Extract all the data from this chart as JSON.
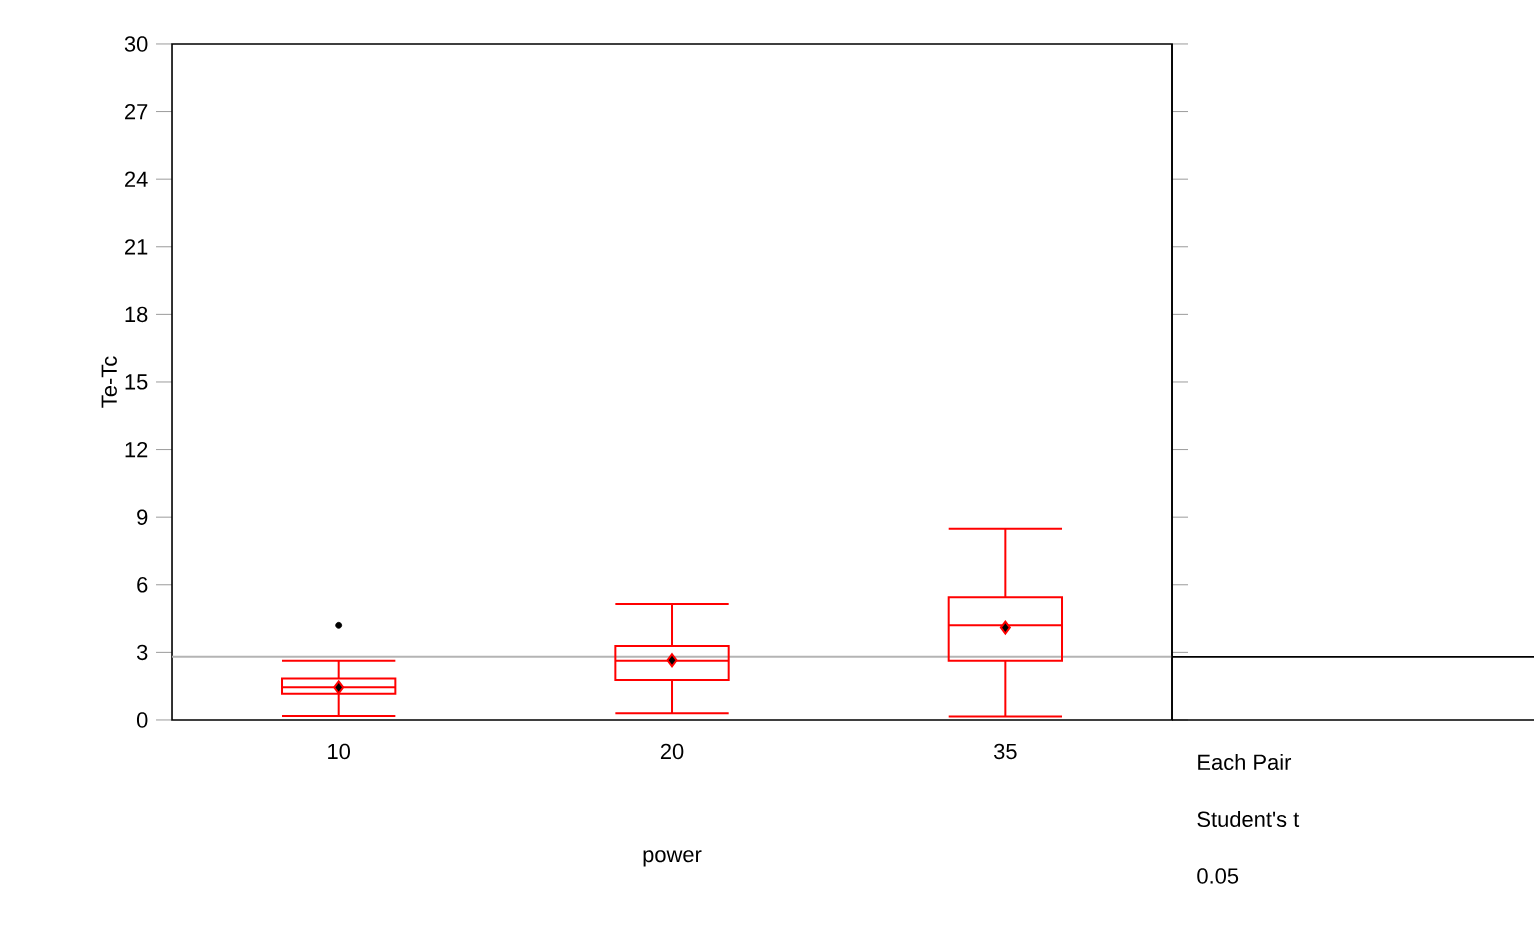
{
  "chart_data": {
    "type": "box",
    "xlabel": "power",
    "ylabel": "Te-Tc",
    "categories": [
      "10",
      "20",
      "35"
    ],
    "colors": [
      "#ff0000",
      "#ff0000",
      "#ff0000"
    ],
    "boxes": [
      {
        "low": 0.18,
        "q1": 1.16,
        "median": 1.45,
        "q3": 1.84,
        "high": 2.63,
        "mean": 1.45,
        "outliers": [
          4.2
        ]
      },
      {
        "low": 0.3,
        "q1": 1.77,
        "median": 2.63,
        "q3": 3.28,
        "high": 5.15,
        "mean": 2.65
      },
      {
        "low": 0.15,
        "q1": 2.63,
        "median": 4.2,
        "q3": 5.45,
        "high": 8.49,
        "mean": 4.1
      }
    ],
    "ylim": [
      0,
      30
    ],
    "yticks": [
      0,
      3,
      6,
      9,
      12,
      15,
      18,
      21,
      24,
      27,
      30
    ],
    "ref_lines": [
      {
        "axis": "y",
        "value": 2.8,
        "color": "#b4b4b4"
      }
    ],
    "annotations": [
      "Each Pair",
      "Student's t",
      "0.05"
    ]
  }
}
